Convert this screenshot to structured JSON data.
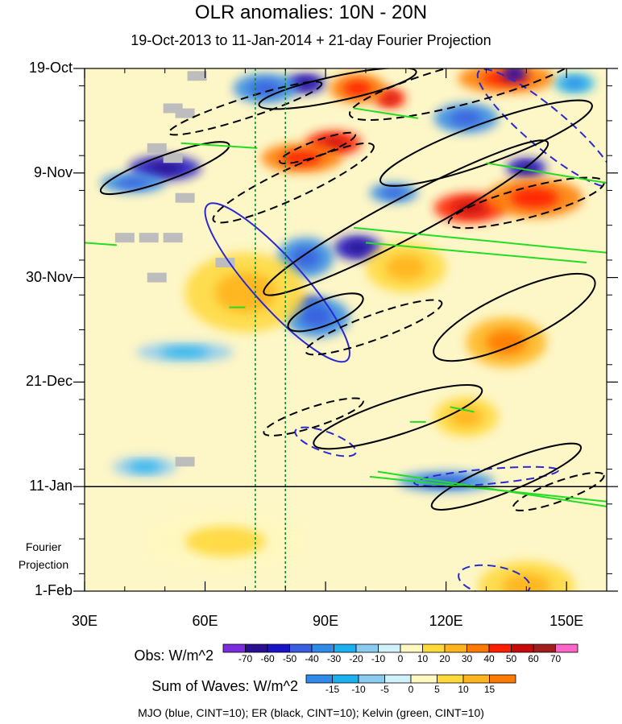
{
  "title": "OLR anomalies: 10N - 20N",
  "subtitle": "19-Oct-2013 to 11-Jan-2014 + 21-day Fourier Projection",
  "projection_label_line1": "Fourier",
  "projection_label_line2": "Projection",
  "footer": "MJO (blue, CINT=10); ER (black, CINT=10); Kelvin (green, CINT=10)",
  "obs_colorbar": {
    "label": "Obs: W/m^2",
    "ticks": [
      "-70",
      "-60",
      "-50",
      "-40",
      "-30",
      "-20",
      "-10",
      "0",
      "10",
      "20",
      "30",
      "40",
      "50",
      "60",
      "70"
    ],
    "colors": [
      "#7b2de0",
      "#2a1090",
      "#1a14c8",
      "#3a5ee0",
      "#2f8ae8",
      "#1ab0f0",
      "#8ccbf0",
      "#d0f0fa",
      "#fff8c0",
      "#ffd83a",
      "#ffb41e",
      "#ff7a00",
      "#ff1e00",
      "#c80a0a",
      "#a01e1e",
      "#ff66c8"
    ]
  },
  "waves_colorbar": {
    "label": "Sum of Waves: W/m^2",
    "ticks": [
      "-15",
      "-10",
      "-5",
      "0",
      "5",
      "10",
      "15"
    ],
    "colors": [
      "#2f8ae8",
      "#1ab0f0",
      "#8ccbf0",
      "#d0f0fa",
      "#fff8c0",
      "#ffd83a",
      "#ffb41e",
      "#ff7a00"
    ]
  },
  "chart_data": {
    "type": "heatmap",
    "xlabel": "",
    "ylabel": "",
    "x_ticks": [
      "30E",
      "60E",
      "90E",
      "120E",
      "150E"
    ],
    "x_tick_values": [
      30,
      60,
      90,
      120,
      150
    ],
    "xlim": [
      30,
      160
    ],
    "y_ticks": [
      "19-Oct",
      "9-Nov",
      "30-Nov",
      "21-Dec",
      "11-Jan",
      "1-Feb"
    ],
    "y_tick_days": [
      0,
      21,
      42,
      63,
      84,
      105
    ],
    "ylim_days": [
      0,
      105
    ],
    "observation_end": "11-Jan",
    "reference_longitudes": [
      72.5,
      80
    ],
    "blobs": [
      {
        "lon": 85,
        "day": 3,
        "rx": 5,
        "ry": 2,
        "v": -60
      },
      {
        "lon": 75,
        "day": 4,
        "rx": 8,
        "ry": 3,
        "v": -40
      },
      {
        "lon": 106,
        "day": 6,
        "rx": 4,
        "ry": 2,
        "v": 45
      },
      {
        "lon": 98,
        "day": 4,
        "rx": 7,
        "ry": 3,
        "v": 30
      },
      {
        "lon": 135,
        "day": 2,
        "rx": 12,
        "ry": 3,
        "v": 30
      },
      {
        "lon": 137,
        "day": 1,
        "rx": 3,
        "ry": 1.5,
        "v": -60
      },
      {
        "lon": 152,
        "day": 3,
        "rx": 5,
        "ry": 2,
        "v": -30
      },
      {
        "lon": 92,
        "day": 15,
        "rx": 7,
        "ry": 2.5,
        "v": 45
      },
      {
        "lon": 84,
        "day": 18,
        "rx": 10,
        "ry": 3,
        "v": 30
      },
      {
        "lon": 50,
        "day": 20,
        "rx": 9,
        "ry": 2.5,
        "v": -55
      },
      {
        "lon": 42,
        "day": 23,
        "rx": 8,
        "ry": 2,
        "v": -40
      },
      {
        "lon": 125,
        "day": 10,
        "rx": 8,
        "ry": 3,
        "v": -40
      },
      {
        "lon": 140,
        "day": 20,
        "rx": 5,
        "ry": 2,
        "v": -60
      },
      {
        "lon": 107,
        "day": 25,
        "rx": 6,
        "ry": 2,
        "v": -40
      },
      {
        "lon": 126,
        "day": 28,
        "rx": 9,
        "ry": 3,
        "v": 45
      },
      {
        "lon": 142,
        "day": 26,
        "rx": 12,
        "ry": 4,
        "v": 30
      },
      {
        "lon": 98,
        "day": 36,
        "rx": 6,
        "ry": 2.5,
        "v": -55
      },
      {
        "lon": 85,
        "day": 38,
        "rx": 7,
        "ry": 4,
        "v": -35
      },
      {
        "lon": 86,
        "day": 48,
        "rx": 4,
        "ry": 2,
        "v": -70
      },
      {
        "lon": 88,
        "day": 50,
        "rx": 8,
        "ry": 4,
        "v": -40
      },
      {
        "lon": 55,
        "day": 57,
        "rx": 12,
        "ry": 2,
        "v": -20
      },
      {
        "lon": 135,
        "day": 55,
        "rx": 10,
        "ry": 5,
        "v": 20
      },
      {
        "lon": 125,
        "day": 70,
        "rx": 8,
        "ry": 4,
        "v": 15
      },
      {
        "lon": 45,
        "day": 80,
        "rx": 8,
        "ry": 2,
        "v": -20
      },
      {
        "lon": 120,
        "day": 83,
        "rx": 12,
        "ry": 2,
        "v": -35
      },
      {
        "lon": 140,
        "day": 104,
        "rx": 12,
        "ry": 5,
        "v": 15
      },
      {
        "lon": 65,
        "day": 95,
        "rx": 20,
        "ry": 6,
        "v": 5
      },
      {
        "lon": 110,
        "day": 40,
        "rx": 10,
        "ry": 5,
        "v": 15
      },
      {
        "lon": 70,
        "day": 45,
        "rx": 15,
        "ry": 8,
        "v": 12
      }
    ],
    "series": [
      {
        "name": "MJO",
        "color": "blue",
        "contours": [
          {
            "lon": 78,
            "day": 43,
            "rx": 26,
            "ry": 5,
            "rot": 48,
            "dash": false
          },
          {
            "lon": 90,
            "day": 75,
            "rx": 8,
            "ry": 2,
            "rot": 20,
            "dash": true
          },
          {
            "lon": 145,
            "day": 12,
            "rx": 22,
            "ry": 4,
            "rot": 40,
            "dash": true
          },
          {
            "lon": 132,
            "day": 103,
            "rx": 9,
            "ry": 3,
            "rot": 10,
            "dash": true
          },
          {
            "lon": 130,
            "day": 82,
            "rx": 18,
            "ry": 1.5,
            "rot": -5,
            "dash": true
          }
        ]
      },
      {
        "name": "ER",
        "color": "black",
        "contours": [
          {
            "lon": 50,
            "day": 20,
            "rx": 17,
            "ry": 2.5,
            "rot": -20,
            "dash": false
          },
          {
            "lon": 82,
            "day": 23,
            "rx": 22,
            "ry": 3,
            "rot": -25,
            "dash": true
          },
          {
            "lon": 88,
            "day": 16,
            "rx": 10,
            "ry": 1.5,
            "rot": -20,
            "dash": true
          },
          {
            "lon": 70,
            "day": 8,
            "rx": 20,
            "ry": 2,
            "rot": -18,
            "dash": true
          },
          {
            "lon": 93,
            "day": 4,
            "rx": 20,
            "ry": 2.5,
            "rot": -12,
            "dash": false
          },
          {
            "lon": 125,
            "day": 3,
            "rx": 30,
            "ry": 4,
            "rot": -15,
            "dash": true
          },
          {
            "lon": 130,
            "day": 15,
            "rx": 28,
            "ry": 4,
            "rot": -20,
            "dash": false
          },
          {
            "lon": 110,
            "day": 30,
            "rx": 40,
            "ry": 4,
            "rot": -28,
            "dash": false
          },
          {
            "lon": 140,
            "day": 27,
            "rx": 20,
            "ry": 3,
            "rot": -15,
            "dash": true
          },
          {
            "lon": 90,
            "day": 49,
            "rx": 10,
            "ry": 2.5,
            "rot": -22,
            "dash": false
          },
          {
            "lon": 102,
            "day": 52,
            "rx": 18,
            "ry": 2.5,
            "rot": -20,
            "dash": true
          },
          {
            "lon": 137,
            "day": 50,
            "rx": 22,
            "ry": 5,
            "rot": -25,
            "dash": false
          },
          {
            "lon": 108,
            "day": 70,
            "rx": 22,
            "ry": 3.5,
            "rot": -18,
            "dash": false
          },
          {
            "lon": 87,
            "day": 70,
            "rx": 13,
            "ry": 2,
            "rot": -18,
            "dash": true
          },
          {
            "lon": 135,
            "day": 82,
            "rx": 20,
            "ry": 3,
            "rot": -22,
            "dash": false
          },
          {
            "lon": 148,
            "day": 85,
            "rx": 12,
            "ry": 2,
            "rot": -20,
            "dash": true
          }
        ]
      },
      {
        "name": "Kelvin",
        "color": "green",
        "lines": [
          {
            "lon1": 54,
            "day1": 15,
            "lon2": 73,
            "day2": 16
          },
          {
            "lon1": 97,
            "day1": 8,
            "lon2": 113,
            "day2": 10
          },
          {
            "lon1": 97,
            "day1": 32,
            "lon2": 160,
            "day2": 37
          },
          {
            "lon1": 100,
            "day1": 35,
            "lon2": 155,
            "day2": 39
          },
          {
            "lon1": 130,
            "day1": 19,
            "lon2": 160,
            "day2": 23
          },
          {
            "lon1": 103,
            "day1": 81,
            "lon2": 160,
            "day2": 88
          },
          {
            "lon1": 101,
            "day1": 82,
            "lon2": 160,
            "day2": 87
          },
          {
            "lon1": 30,
            "day1": 35,
            "lon2": 38,
            "day2": 35.5
          },
          {
            "lon1": 66,
            "day1": 48,
            "lon2": 70,
            "day2": 48
          },
          {
            "lon1": 111,
            "day1": 71,
            "lon2": 115,
            "day2": 71
          },
          {
            "lon1": 121,
            "day1": 68,
            "lon2": 127,
            "day2": 69
          }
        ]
      }
    ],
    "missing_data_cells": [
      {
        "lon": 58,
        "day": 1.5
      },
      {
        "lon": 52,
        "day": 8
      },
      {
        "lon": 55,
        "day": 9
      },
      {
        "lon": 48,
        "day": 16
      },
      {
        "lon": 52,
        "day": 18
      },
      {
        "lon": 55,
        "day": 26
      },
      {
        "lon": 40,
        "day": 34
      },
      {
        "lon": 46,
        "day": 34
      },
      {
        "lon": 52,
        "day": 34
      },
      {
        "lon": 65,
        "day": 39
      },
      {
        "lon": 48,
        "day": 42
      },
      {
        "lon": 55,
        "day": 79
      }
    ]
  }
}
